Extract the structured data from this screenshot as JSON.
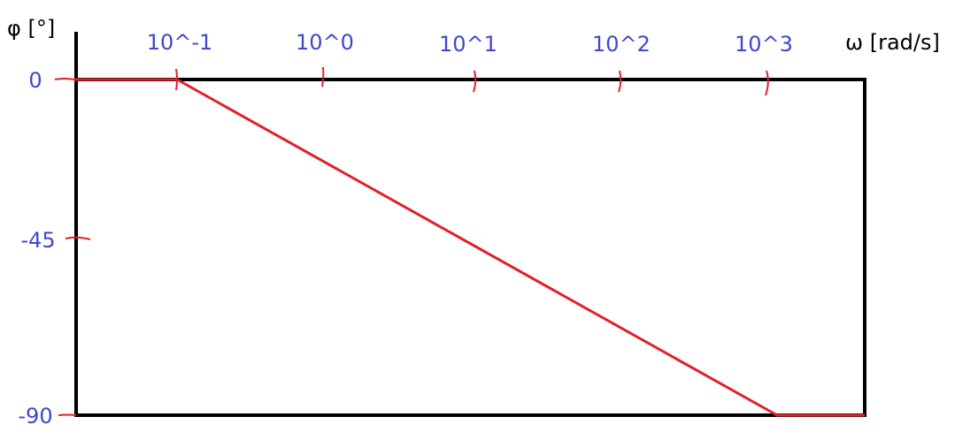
{
  "chart_data": {
    "type": "line",
    "ylabel": "φ [°]",
    "xlabel": "ω [rad/s]",
    "x_scale": "log",
    "x_ticks": [
      "10^-1",
      "10^0",
      "10^1",
      "10^2",
      "10^3"
    ],
    "y_ticks": [
      "0",
      "-45",
      "-90"
    ],
    "xlim": [
      0.02,
      20000
    ],
    "ylim": [
      -90,
      0
    ],
    "grid": false,
    "series": [
      {
        "x": [
          0.02,
          0.1,
          1000,
          20000
        ],
        "y": [
          0,
          0,
          -90,
          -90
        ]
      }
    ],
    "colors": {
      "series": "#e0202a",
      "tick_marks": "#e0202a",
      "labels": "#3f48cc",
      "frame": "#000000"
    }
  }
}
